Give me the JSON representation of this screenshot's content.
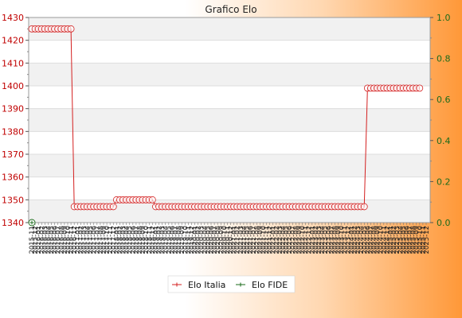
{
  "chart_data": {
    "type": "line",
    "title": "Grafico Elo",
    "left_axis": {
      "ylim": [
        1340,
        1430
      ],
      "ticks": [
        "1340",
        "1350",
        "1360",
        "1370",
        "1380",
        "1390",
        "1400",
        "1410",
        "1420",
        "1430"
      ],
      "color": "#c00000"
    },
    "right_axis": {
      "ylim": [
        0.0,
        1.0
      ],
      "ticks": [
        "0.0",
        "0.2",
        "0.4",
        "0.6",
        "0.8",
        "1.0"
      ],
      "color": "#1a6b1a"
    },
    "grid": "horizontal bands",
    "legend_position": "bottom-center",
    "x_labels": [
      "2015-11",
      "2015-12",
      "2016-01",
      "2016-02",
      "2016-03",
      "2016-04",
      "2016-05",
      "2016-06",
      "2016-07",
      "2016-08",
      "2016-09",
      "2016-10",
      "2016-11",
      "2016-12",
      "2017-01",
      "2017-02",
      "2017-03",
      "2017-04",
      "2017-05",
      "2017-06",
      "2017-07",
      "2017-08",
      "2017-09",
      "2017-10",
      "2017-11",
      "2017-12",
      "2018-01",
      "2018-02",
      "2018-03",
      "2018-04",
      "2018-05",
      "2018-06",
      "2018-07",
      "2018-08",
      "2018-09",
      "2018-10",
      "2018-11",
      "2018-12",
      "2019-01",
      "2019-02",
      "2019-03",
      "2019-04",
      "2019-05",
      "2019-06",
      "2019-07",
      "2019-08",
      "2019-09",
      "2019-10",
      "2019-11",
      "2019-12",
      "2020-01",
      "2020-02",
      "2020-03",
      "2020-04",
      "2020-05",
      "2020-06",
      "2020-07",
      "2020-08",
      "2020-09",
      "2020-10",
      "2020-11",
      "2020-12",
      "2021-01",
      "2021-02",
      "2021-03",
      "2021-04",
      "2021-05",
      "2021-06",
      "2021-07",
      "2021-08",
      "2021-09",
      "2021-10",
      "2021-11",
      "2021-12",
      "2022-01",
      "2022-02",
      "2022-03",
      "2022-04",
      "2022-05",
      "2022-06",
      "2022-07",
      "2022-08",
      "2022-09",
      "2022-10",
      "2022-11",
      "2022-12",
      "2023-01",
      "2023-02",
      "2023-03",
      "2023-04",
      "2023-05",
      "2023-06",
      "2023-07",
      "2023-08",
      "2023-09",
      "2023-10",
      "2023-11",
      "2023-12",
      "2024-01",
      "2024-02",
      "2024-03",
      "2024-04",
      "2024-05",
      "2024-06",
      "2024-07",
      "2024-08",
      "2024-09",
      "2024-10",
      "2024-11",
      "2024-12",
      "2025-01",
      "2025-02",
      "2025-03",
      "2025-04",
      "2025-05",
      "2025-06",
      "2025-07",
      "2025-08",
      "2025-09",
      "2025-10",
      "2025-11",
      "2025-12"
    ],
    "series": [
      {
        "name": "Elo Italia",
        "color": "#d42020",
        "axis": "left",
        "segments": [
          {
            "from": 0,
            "to": 12,
            "value": 1425
          },
          {
            "from": 13,
            "to": 25,
            "value": 1347
          },
          {
            "from": 26,
            "to": 37,
            "value": 1350
          },
          {
            "from": 38,
            "to": 102,
            "value": 1347
          },
          {
            "from": 103,
            "to": 119,
            "value": 1399
          }
        ]
      },
      {
        "name": "Elo FIDE",
        "color": "#1a6b1a",
        "axis": "right",
        "points": [
          {
            "index": 0,
            "value": 0.0
          }
        ]
      }
    ]
  },
  "legend": {
    "items": [
      "Elo Italia",
      "Elo FIDE"
    ]
  }
}
